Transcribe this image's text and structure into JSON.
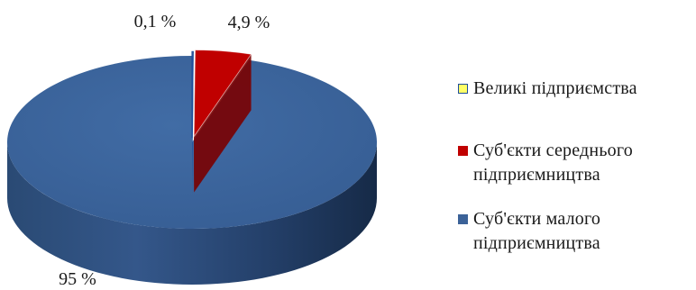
{
  "chart_data": {
    "type": "pie",
    "style": "3d-exploded",
    "title": "",
    "slices": [
      {
        "name": "Великі підприємства",
        "value": 0.1,
        "label": "0,1 %",
        "color": "#ffff66",
        "edge": "#1f4e9a"
      },
      {
        "name": "Суб'єкти середнього підприємництва",
        "value": 4.9,
        "label": "4,9 %",
        "color": "#c00000",
        "edge": "#7a0000"
      },
      {
        "name": "Суб'єкти малого підприємництва",
        "value": 95,
        "label": "95 %",
        "color": "#3b6298",
        "edge": "#1c3353"
      }
    ],
    "legend": {
      "placement": "right",
      "items": [
        {
          "line1": "Великі підприємства",
          "line2": ""
        },
        {
          "line1": "Суб'єкти середнього",
          "line2": "підприємництва"
        },
        {
          "line1": "Суб'єкти малого",
          "line2": "підприємництва"
        }
      ]
    }
  }
}
